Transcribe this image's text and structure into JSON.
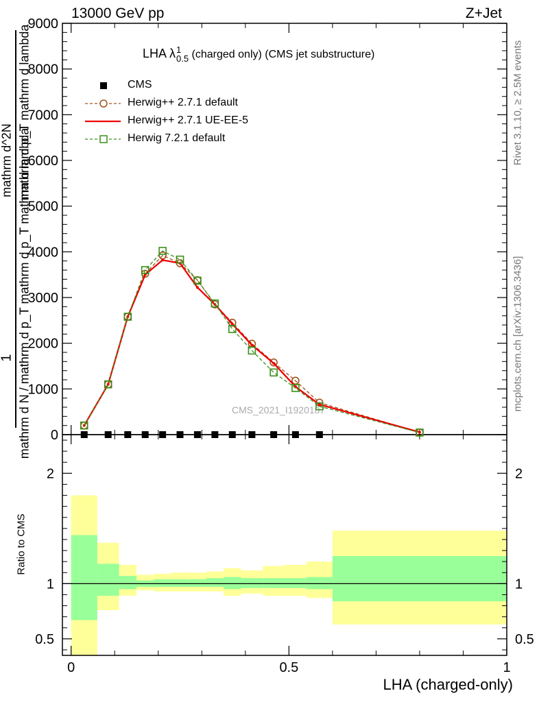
{
  "header": {
    "left": "13000 GeV pp",
    "right": "Z+Jet"
  },
  "side_text": {
    "rivet": "Rivet 3.1.10, ≥ 2.5M events",
    "mcplots": "mcplots.cern.ch [arXiv:1306.3436]"
  },
  "watermark": "CMS_2021_I1920187",
  "chart_data": {
    "type": "line",
    "title": "LHA λ",
    "title_sup": "1",
    "title_sub": "0.5",
    "title_rest": " (charged only) (CMS jet substructure)",
    "xlabel": "LHA (charged-only)",
    "ylabel_main": [
      "1",
      "mathrm d N / mathrm d p_T mathrm d p_T mathrm d lambda",
      "mathrm d^2N",
      "mathrm d p_T mathrm d lambda"
    ],
    "ylabel_ratio": "Ratio to CMS",
    "xlim": [
      -0.02,
      1.0
    ],
    "ylim_main": [
      0,
      9000
    ],
    "ylim_ratio": [
      0.35,
      2.35
    ],
    "yticks_main": [
      "0",
      "1000",
      "2000",
      "3000",
      "4000",
      "5000",
      "6000",
      "7000",
      "8000",
      "9000"
    ],
    "yticks_ratio": [
      "0.5",
      "1",
      "2"
    ],
    "xticks": [
      "0",
      "0.5",
      "1"
    ],
    "x": [
      0.03,
      0.085,
      0.13,
      0.17,
      0.21,
      0.25,
      0.29,
      0.33,
      0.37,
      0.415,
      0.465,
      0.515,
      0.57,
      0.8
    ],
    "bin_edges": [
      0.0,
      0.06,
      0.11,
      0.15,
      0.19,
      0.23,
      0.27,
      0.31,
      0.35,
      0.39,
      0.44,
      0.49,
      0.54,
      0.6,
      1.0
    ],
    "series": [
      {
        "name": "CMS",
        "color": "#000000",
        "marker": "square-filled",
        "values": [
          0,
          0,
          0,
          0,
          0,
          0,
          0,
          0,
          0,
          0,
          0,
          0,
          0,
          0
        ]
      },
      {
        "name": "Herwig++ 2.7.1 default",
        "color": "#a0521a",
        "marker": "circle-open",
        "dash": true,
        "values": [
          200,
          1100,
          2580,
          3520,
          3920,
          3750,
          3380,
          2850,
          2450,
          1990,
          1580,
          1180,
          700,
          50
        ]
      },
      {
        "name": "Herwig++ 2.7.1 UE-EE-5",
        "color": "#ee0000",
        "marker": "none",
        "dash": false,
        "values": [
          200,
          1100,
          2580,
          3500,
          3820,
          3750,
          3220,
          2850,
          2420,
          1960,
          1560,
          1050,
          660,
          55
        ]
      },
      {
        "name": "Herwig 7.2.1 default",
        "color": "#3a8f1a",
        "marker": "square-open",
        "dash": true,
        "values": [
          200,
          1100,
          2580,
          3600,
          4020,
          3830,
          3370,
          2870,
          2310,
          1840,
          1360,
          1020,
          620,
          45
        ]
      }
    ],
    "ratio_bands": {
      "inner_color": "#99ff99",
      "outer_color": "#ffff99",
      "inner": [
        [
          0.67,
          1.44
        ],
        [
          0.89,
          1.18
        ],
        [
          0.95,
          1.07
        ],
        [
          0.97,
          1.03
        ],
        [
          0.97,
          1.04
        ],
        [
          0.97,
          1.04
        ],
        [
          0.97,
          1.04
        ],
        [
          0.97,
          1.05
        ],
        [
          0.95,
          1.06
        ],
        [
          0.96,
          1.05
        ],
        [
          0.96,
          1.05
        ],
        [
          0.96,
          1.05
        ],
        [
          0.95,
          1.06
        ],
        [
          0.84,
          1.25
        ]
      ],
      "outer": [
        [
          0.35,
          1.8
        ],
        [
          0.76,
          1.37
        ],
        [
          0.89,
          1.17
        ],
        [
          0.94,
          1.08
        ],
        [
          0.93,
          1.09
        ],
        [
          0.93,
          1.1
        ],
        [
          0.93,
          1.1
        ],
        [
          0.93,
          1.11
        ],
        [
          0.89,
          1.14
        ],
        [
          0.91,
          1.12
        ],
        [
          0.89,
          1.16
        ],
        [
          0.89,
          1.17
        ],
        [
          0.87,
          1.2
        ],
        [
          0.63,
          1.48
        ]
      ]
    }
  }
}
